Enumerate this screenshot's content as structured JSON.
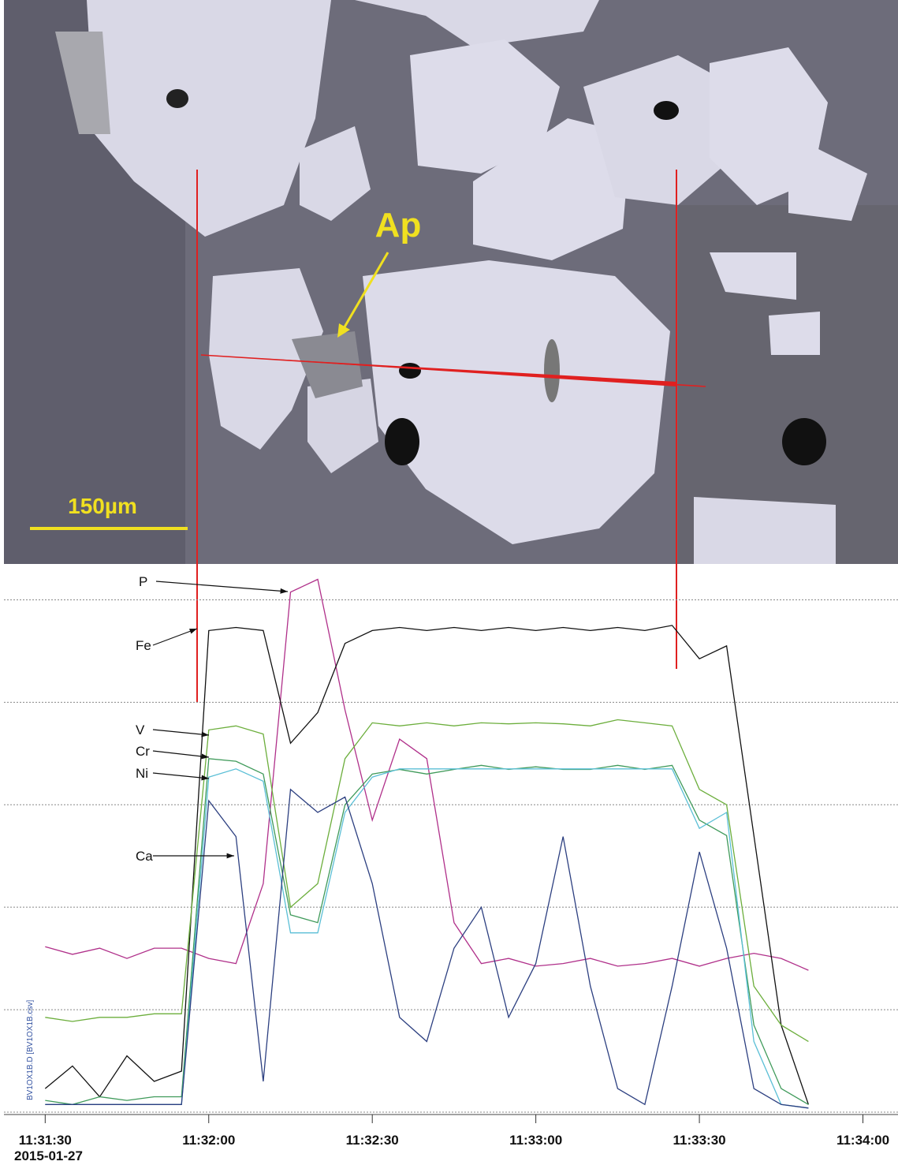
{
  "image": {
    "mineral_label": "Ap",
    "scale_bar": "150µm"
  },
  "chart_data": {
    "type": "line",
    "x": [
      "11:31:30",
      "11:31:35",
      "11:31:40",
      "11:31:45",
      "11:31:50",
      "11:31:55",
      "11:32:00",
      "11:32:05",
      "11:32:10",
      "11:32:15",
      "11:32:20",
      "11:32:25",
      "11:32:30",
      "11:32:35",
      "11:32:40",
      "11:32:45",
      "11:32:50",
      "11:32:55",
      "11:33:00",
      "11:33:05",
      "11:33:10",
      "11:33:15",
      "11:33:20",
      "11:33:25",
      "11:33:30",
      "11:33:35",
      "11:33:40",
      "11:33:45",
      "11:33:50"
    ],
    "xlim": [
      "11:31:22",
      "11:34:06"
    ],
    "xticks": [
      "11:31:30",
      "11:32:00",
      "11:32:30",
      "11:33:00",
      "11:33:30",
      "11:34:00"
    ],
    "date_label": "2015-01-27",
    "ylim": [
      0,
      107
    ],
    "y_gridlines": [
      0,
      20,
      40,
      60,
      80,
      100
    ],
    "grid": true,
    "file_label": "BV1OX1B.D [BV1OX1B.csv]",
    "series": [
      {
        "name": "P",
        "color": "#b0308a",
        "values": [
          32.3,
          30.8,
          32,
          30,
          32,
          32,
          30,
          29,
          44.6,
          101.5,
          104,
          78.5,
          57,
          72.8,
          69,
          37,
          29,
          30,
          28.5,
          29,
          30,
          28.5,
          29,
          30,
          28.5,
          30,
          31,
          30,
          27.7
        ]
      },
      {
        "name": "Fe",
        "color": "#111111",
        "values": [
          4.6,
          9,
          3,
          11,
          6,
          8,
          94,
          94.6,
          94,
          72,
          78,
          91.5,
          94,
          94.6,
          94,
          94.6,
          94,
          94.6,
          94,
          94.6,
          94,
          94.6,
          94,
          95,
          88.5,
          91,
          54,
          17,
          1.5
        ]
      },
      {
        "name": "V",
        "color": "#6cae3c",
        "values": [
          18.5,
          17.7,
          18.5,
          18.5,
          19.2,
          19.2,
          74.6,
          75.4,
          73.8,
          40,
          44.6,
          69,
          76,
          75.4,
          76,
          75.4,
          76,
          75.8,
          76,
          75.8,
          75.4,
          76.6,
          76,
          75.4,
          63,
          60,
          24.6,
          17,
          13.8
        ]
      },
      {
        "name": "Cr",
        "color": "#3f9a5a",
        "values": [
          2.3,
          1.5,
          3,
          2.3,
          3,
          3,
          69,
          68.5,
          66,
          38.5,
          37,
          60,
          66,
          66.9,
          66,
          66.9,
          67.7,
          66.9,
          67.4,
          66.9,
          66.9,
          67.7,
          66.9,
          67.7,
          57,
          54,
          17,
          4.6,
          1.5
        ]
      },
      {
        "name": "Ni",
        "color": "#5bbfd6",
        "values": [
          1.5,
          1.5,
          1.5,
          1.5,
          1.5,
          1.5,
          65.4,
          67,
          64.6,
          35,
          35,
          58.5,
          65.4,
          67,
          67,
          67,
          67,
          67,
          67,
          67,
          67,
          67,
          67,
          67,
          55.4,
          58.5,
          13.8,
          1.5,
          0.8
        ]
      },
      {
        "name": "Ca",
        "color": "#2c3f80",
        "values": [
          1.5,
          1.5,
          1.5,
          1.5,
          1.5,
          1.5,
          60.8,
          53.8,
          6,
          63,
          58.5,
          61.5,
          44.6,
          18.5,
          13.8,
          32,
          40,
          18.5,
          29,
          53.8,
          24.6,
          4.6,
          1.5,
          24.6,
          50.8,
          32,
          4.6,
          1.5,
          0.8
        ]
      }
    ]
  }
}
